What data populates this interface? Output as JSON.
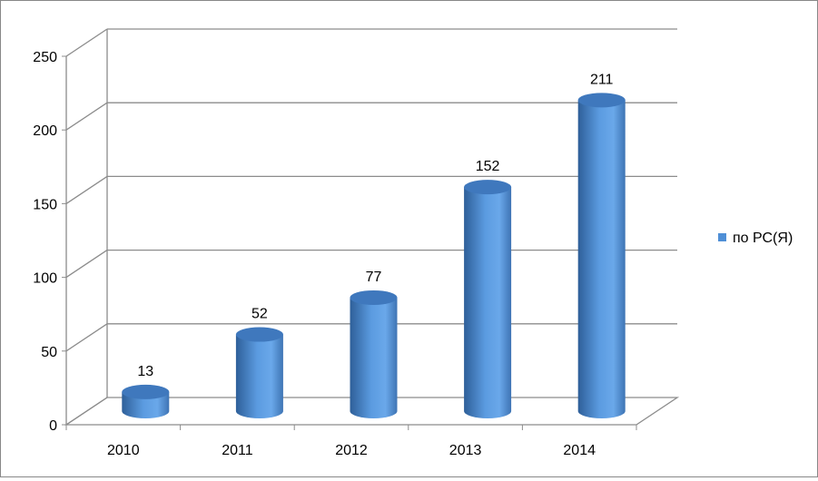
{
  "chart_data": {
    "type": "bar",
    "style": "3d-cylinder",
    "categories": [
      "2010",
      "2011",
      "2012",
      "2013",
      "2014"
    ],
    "series": [
      {
        "name": "по РС(Я)",
        "values": [
          13,
          52,
          77,
          152,
          211
        ],
        "color": "#4F8FD6"
      }
    ],
    "data_labels": [
      "13",
      "52",
      "77",
      "152",
      "211"
    ],
    "yticks": [
      "0",
      "50",
      "100",
      "150",
      "200",
      "250"
    ],
    "ylim": [
      0,
      250
    ],
    "grid": true,
    "legend": "right"
  }
}
